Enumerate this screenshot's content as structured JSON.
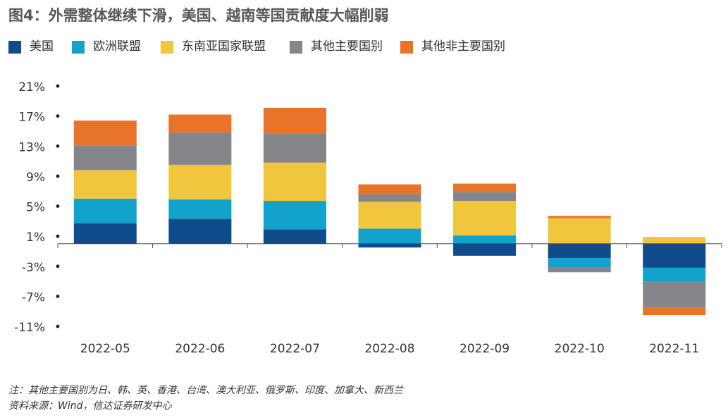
{
  "title": "图4：外需整体继续下滑，美国、越南等国贡献度大幅削弱",
  "legend": [
    {
      "name": "美国",
      "color": "#0E4C8C"
    },
    {
      "name": "欧洲联盟",
      "color": "#12A3CC"
    },
    {
      "name": "东南亚国家联盟",
      "color": "#F0C63C"
    },
    {
      "name": "其他主要国别",
      "color": "#85868A"
    },
    {
      "name": "其他非主要国别",
      "color": "#E8742A"
    }
  ],
  "chart_data": {
    "type": "bar",
    "stacked": true,
    "categories": [
      "2022-05",
      "2022-06",
      "2022-07",
      "2022-08",
      "2022-09",
      "2022-10",
      "2022-11"
    ],
    "yticks": [
      "21%",
      "17%",
      "13%",
      "9%",
      "5%",
      "1%",
      "-3%",
      "-7%",
      "-11%"
    ],
    "ylim": [
      -11,
      21
    ],
    "series": [
      {
        "name": "美国",
        "color": "#0E4C8C",
        "values": [
          2.7,
          3.3,
          1.9,
          -0.5,
          -1.6,
          -1.9,
          -3.2
        ]
      },
      {
        "name": "欧洲联盟",
        "color": "#12A3CC",
        "values": [
          3.3,
          2.6,
          3.8,
          2.0,
          1.1,
          -1.3,
          -1.8
        ]
      },
      {
        "name": "东南亚国家联盟",
        "color": "#F0C63C",
        "values": [
          3.8,
          4.6,
          5.1,
          3.6,
          4.6,
          3.4,
          0.9
        ]
      },
      {
        "name": "其他主要国别",
        "color": "#85868A",
        "values": [
          3.3,
          4.3,
          3.9,
          1.0,
          1.2,
          -0.6,
          -3.5
        ]
      },
      {
        "name": "其他非主要国别",
        "color": "#E8742A",
        "values": [
          3.3,
          2.4,
          3.4,
          1.3,
          1.1,
          0.3,
          -1.0
        ]
      }
    ]
  },
  "notes": {
    "note": "注：其他主要国别为日、韩、英、香港、台湾、澳大利亚、俄罗斯、印度、加拿大、新西兰",
    "source": "资料来源：Wind，信达证券研发中心"
  }
}
